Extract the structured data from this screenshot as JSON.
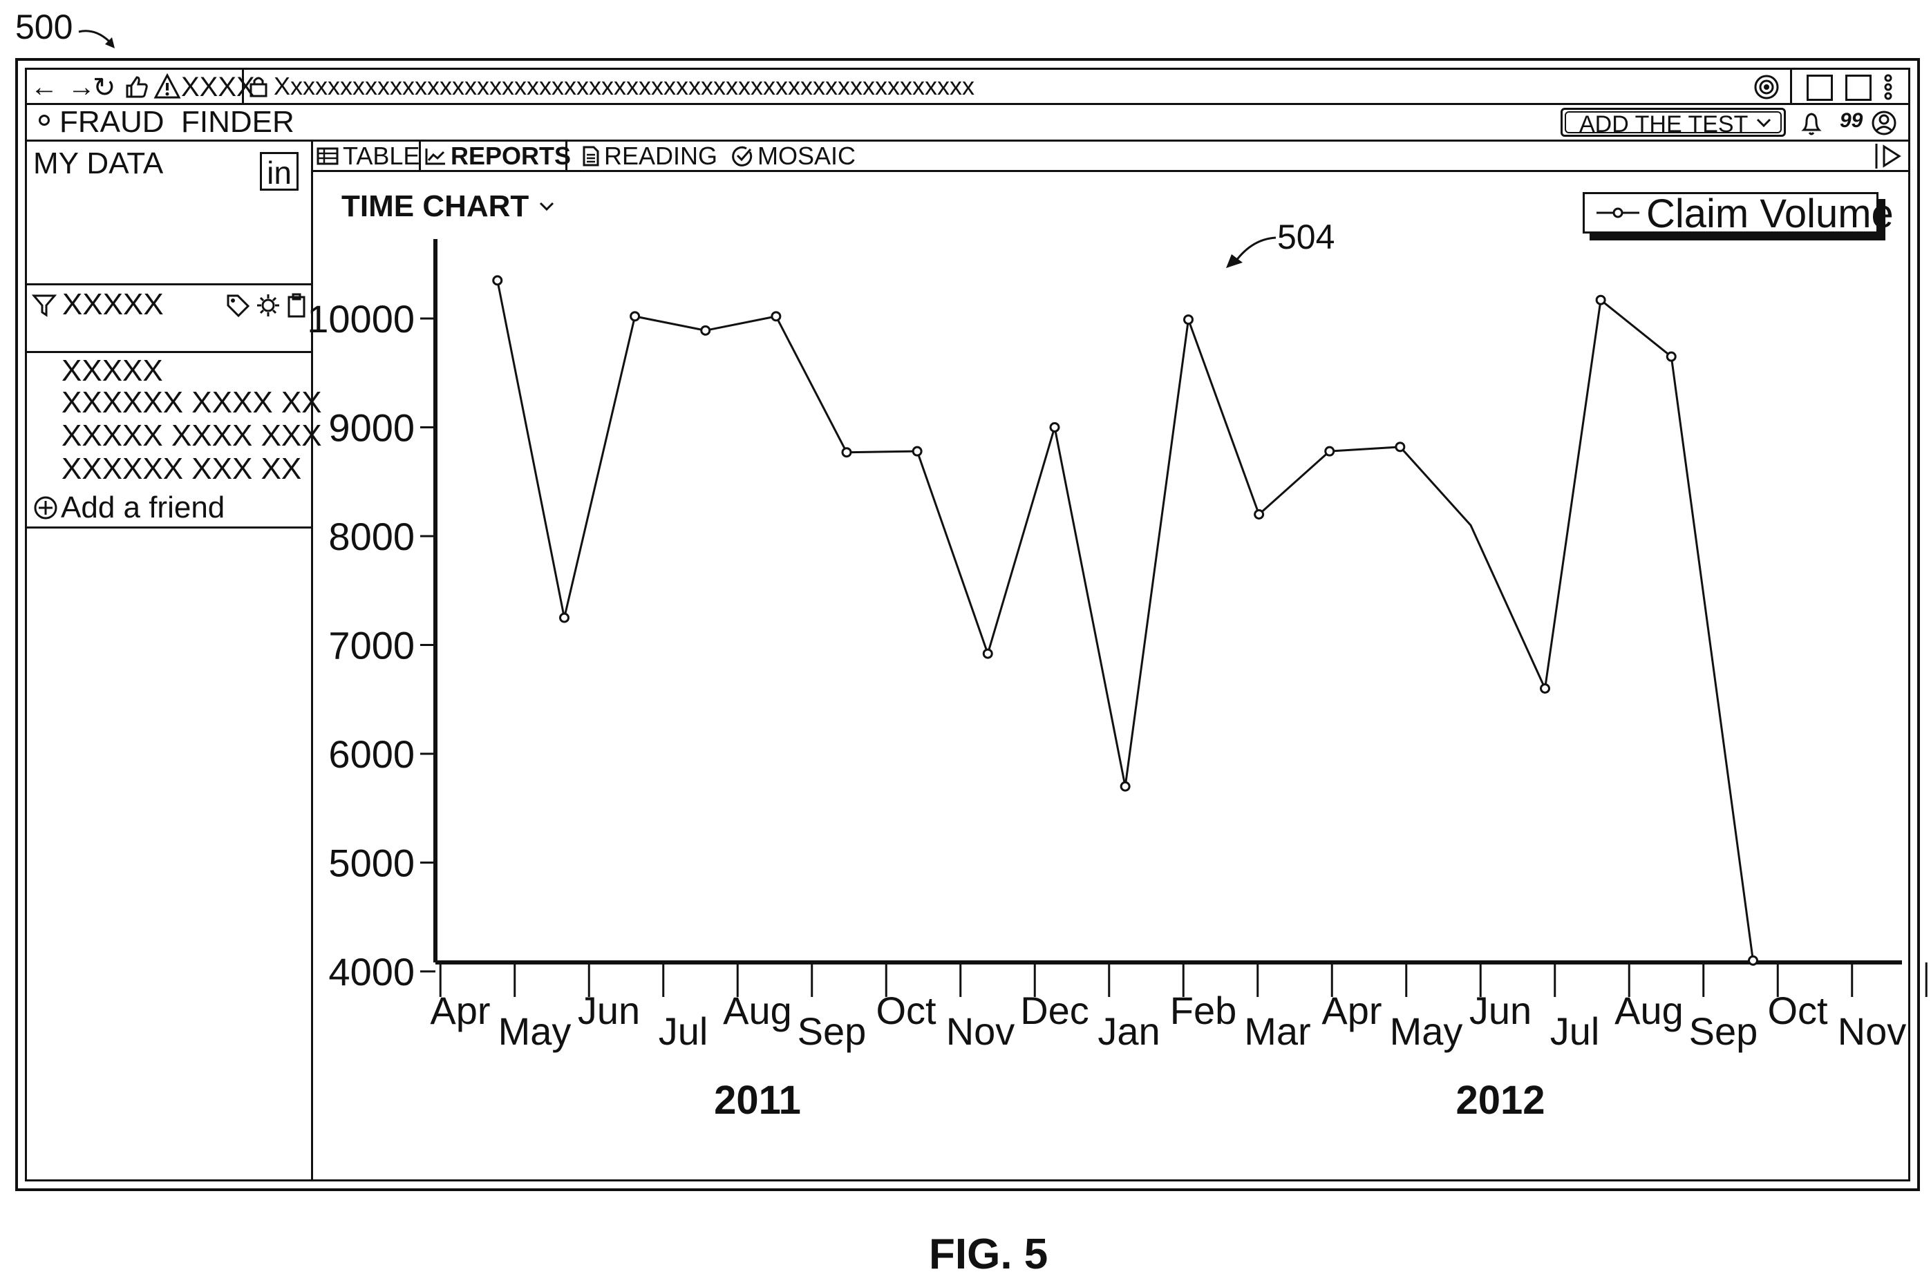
{
  "figure": {
    "ref_main": "500",
    "ref_chart": "504",
    "caption": "FIG. 5"
  },
  "browser": {
    "tab_label": "XXXX",
    "url": "Xxxxxxxxxxxxxxxxxxxxxxxxxxxxxxxxxxxxxxxxxxxxxxxxxxxxxxxx"
  },
  "app": {
    "title": "FRAUD  FINDER",
    "add_test_label": "ADD THE TEST",
    "quote_glyph": "99"
  },
  "sidebar": {
    "my_data_label": "MY DATA",
    "linkedin_label": "in",
    "filter_label": "XXXXX",
    "lines": [
      "XXXXX",
      "XXXXXX XXXX XX",
      "XXXXX XXXX XXX",
      "XXXXXX XXX XX"
    ],
    "add_friend_label": "Add a friend"
  },
  "tabs": [
    {
      "label": "TABLE",
      "icon": "table-icon",
      "active": false
    },
    {
      "label": "REPORTS",
      "icon": "line-chart-icon",
      "active": true
    },
    {
      "label": "READING",
      "icon": "document-icon",
      "active": false
    },
    {
      "label": "MOSAIC",
      "icon": "check-circle-icon",
      "active": false
    }
  ],
  "chart_title": "TIME CHART",
  "chart_data": {
    "type": "line",
    "title": "TIME CHART",
    "legend": "Claim Volume",
    "legend_position": "top-right",
    "grid": false,
    "xlabels": [
      "Apr",
      "May",
      "Jun",
      "Jul",
      "Aug",
      "Sep",
      "Oct",
      "Nov",
      "Dec",
      "Jan",
      "Feb",
      "Mar",
      "Apr",
      "May",
      "Jun",
      "Jul",
      "Aug",
      "Sep",
      "Oct",
      "Nov"
    ],
    "year_labels": [
      {
        "label": "2011",
        "under": "Aug"
      },
      {
        "label": "2012",
        "under": "Jun"
      }
    ],
    "yticks": [
      4000,
      5000,
      6000,
      7000,
      8000,
      9000,
      10000
    ],
    "ylim": [
      3750,
      10420
    ],
    "series": [
      {
        "name": "Claim Volume",
        "points": [
          {
            "x": 1.5,
            "y": 10350,
            "marker": true
          },
          {
            "x": 2.4,
            "y": 7250,
            "marker": true
          },
          {
            "x": 3.35,
            "y": 10020,
            "marker": true
          },
          {
            "x": 4.3,
            "y": 9890,
            "marker": true
          },
          {
            "x": 5.25,
            "y": 10020,
            "marker": true
          },
          {
            "x": 6.2,
            "y": 8770,
            "marker": true
          },
          {
            "x": 7.15,
            "y": 8780,
            "marker": true
          },
          {
            "x": 8.1,
            "y": 6920,
            "marker": true
          },
          {
            "x": 9.0,
            "y": 9000,
            "marker": true
          },
          {
            "x": 9.95,
            "y": 5700,
            "marker": true
          },
          {
            "x": 10.8,
            "y": 9990,
            "marker": true
          },
          {
            "x": 11.75,
            "y": 8200,
            "marker": true
          },
          {
            "x": 12.7,
            "y": 8780,
            "marker": true
          },
          {
            "x": 13.65,
            "y": 8820,
            "marker": true
          },
          {
            "x": 14.6,
            "y": 8100,
            "marker": false
          },
          {
            "x": 15.6,
            "y": 6600,
            "marker": true
          },
          {
            "x": 16.35,
            "y": 10170,
            "marker": true
          },
          {
            "x": 17.3,
            "y": 9650,
            "marker": true
          },
          {
            "x": 18.4,
            "y": 4100,
            "marker": true
          }
        ]
      }
    ]
  }
}
